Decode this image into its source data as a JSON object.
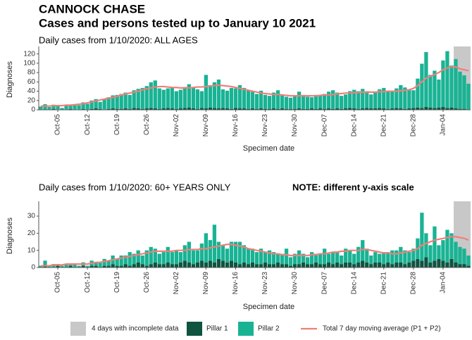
{
  "title": "CANNOCK CHASE",
  "subtitle": "Cases and persons tested up to January 10 2021",
  "incomplete_label": "4 days with incomplete data",
  "incomplete_color": "#c8c8c8",
  "chart_data": [
    {
      "type": "bar",
      "title": "Daily cases from 1/10/2020: ALL AGES",
      "xlabel": "Specimen date",
      "ylabel": "Diagnoses",
      "incomplete_days": 4,
      "categories": [
        null,
        null,
        null,
        null,
        "Oct-05",
        null,
        null,
        null,
        null,
        null,
        null,
        "Oct-12",
        null,
        null,
        null,
        null,
        null,
        null,
        "Oct-19",
        null,
        null,
        null,
        null,
        null,
        null,
        "Oct-26",
        null,
        null,
        null,
        null,
        null,
        null,
        "Nov-02",
        null,
        null,
        null,
        null,
        null,
        null,
        "Nov-09",
        null,
        null,
        null,
        null,
        null,
        null,
        "Nov-16",
        null,
        null,
        null,
        null,
        null,
        null,
        "Nov-23",
        null,
        null,
        null,
        null,
        null,
        null,
        "Nov-30",
        null,
        null,
        null,
        null,
        null,
        null,
        "Dec-07",
        null,
        null,
        null,
        null,
        null,
        null,
        "Dec-14",
        null,
        null,
        null,
        null,
        null,
        null,
        "Dec-21",
        null,
        null,
        null,
        null,
        null,
        null,
        "Dec-28",
        null,
        null,
        null,
        null,
        null,
        null,
        "Jan-04",
        null,
        null,
        null,
        null,
        null,
        null
      ],
      "ylim": [
        0,
        130
      ],
      "yticks": [
        0,
        20,
        40,
        60,
        80,
        100,
        120
      ],
      "series": [
        {
          "name": "Pillar 1",
          "color": "#0e5440",
          "values": [
            1,
            0,
            1,
            2,
            1,
            0,
            1,
            2,
            1,
            1,
            2,
            1,
            2,
            3,
            2,
            1,
            2,
            3,
            2,
            2,
            3,
            2,
            4,
            3,
            2,
            3,
            4,
            3,
            2,
            3,
            4,
            3,
            2,
            3,
            4,
            5,
            3,
            2,
            4,
            3,
            5,
            4,
            3,
            4,
            3,
            2,
            4,
            3,
            3,
            2,
            3,
            2,
            3,
            2,
            2,
            3,
            2,
            3,
            2,
            2,
            2,
            3,
            2,
            2,
            3,
            2,
            3,
            2,
            3,
            2,
            3,
            2,
            3,
            4,
            3,
            2,
            3,
            4,
            3,
            3,
            4,
            3,
            2,
            3,
            4,
            3,
            2,
            3,
            4,
            5,
            4,
            6,
            5,
            4,
            5,
            6,
            4,
            5,
            3,
            2,
            2,
            1
          ]
        },
        {
          "name": "Pillar 2",
          "color": "#19b394",
          "values": [
            6,
            12,
            5,
            9,
            7,
            4,
            10,
            8,
            11,
            9,
            14,
            12,
            18,
            20,
            15,
            22,
            25,
            28,
            30,
            32,
            34,
            30,
            38,
            42,
            45,
            48,
            55,
            60,
            44,
            40,
            42,
            46,
            38,
            40,
            45,
            50,
            44,
            42,
            36,
            72,
            48,
            55,
            62,
            40,
            38,
            45,
            42,
            50,
            44,
            40,
            36,
            32,
            38,
            30,
            28,
            34,
            40,
            30,
            26,
            24,
            28,
            36,
            30,
            26,
            24,
            30,
            28,
            32,
            36,
            40,
            34,
            28,
            30,
            36,
            40,
            38,
            42,
            36,
            30,
            34,
            40,
            44,
            38,
            36,
            42,
            50,
            46,
            40,
            38,
            62,
            95,
            118,
            70,
            80,
            60,
            100,
            122,
            90,
            106,
            80,
            72,
            55
          ]
        },
        {
          "name": "Total 7 day moving average (P1 + P2)",
          "type": "line",
          "color": "#f07f7a",
          "values": [
            8,
            8,
            8,
            9,
            9,
            9,
            10,
            10,
            11,
            12,
            13,
            15,
            17,
            19,
            21,
            23,
            25,
            27,
            29,
            32,
            34,
            36,
            38,
            40,
            43,
            45,
            47,
            49,
            50,
            50,
            49,
            48,
            48,
            47,
            47,
            47,
            48,
            49,
            49,
            50,
            51,
            52,
            53,
            52,
            51,
            50,
            48,
            46,
            44,
            42,
            40,
            38,
            36,
            35,
            34,
            33,
            33,
            32,
            31,
            30,
            30,
            30,
            30,
            30,
            30,
            30,
            31,
            32,
            32,
            33,
            34,
            35,
            36,
            36,
            37,
            37,
            38,
            38,
            38,
            38,
            39,
            39,
            40,
            40,
            40,
            41,
            42,
            43,
            46,
            52,
            60,
            68,
            72,
            76,
            80,
            86,
            90,
            92,
            92,
            88,
            86,
            84
          ]
        }
      ]
    },
    {
      "type": "bar",
      "title": "Daily cases from 1/10/2020: 60+ YEARS ONLY",
      "note": "NOTE: different y-axis scale",
      "xlabel": "Specimen date",
      "ylabel": "Diagnoses",
      "incomplete_days": 4,
      "categories": [
        null,
        null,
        null,
        null,
        "Oct-05",
        null,
        null,
        null,
        null,
        null,
        null,
        "Oct-12",
        null,
        null,
        null,
        null,
        null,
        null,
        "Oct-19",
        null,
        null,
        null,
        null,
        null,
        null,
        "Oct-26",
        null,
        null,
        null,
        null,
        null,
        null,
        "Nov-02",
        null,
        null,
        null,
        null,
        null,
        null,
        "Nov-09",
        null,
        null,
        null,
        null,
        null,
        null,
        "Nov-16",
        null,
        null,
        null,
        null,
        null,
        null,
        "Nov-23",
        null,
        null,
        null,
        null,
        null,
        null,
        "Nov-30",
        null,
        null,
        null,
        null,
        null,
        null,
        "Dec-07",
        null,
        null,
        null,
        null,
        null,
        null,
        "Dec-14",
        null,
        null,
        null,
        null,
        null,
        null,
        "Dec-21",
        null,
        null,
        null,
        null,
        null,
        null,
        "Dec-28",
        null,
        null,
        null,
        null,
        null,
        null,
        "Jan-04",
        null,
        null,
        null,
        null,
        null,
        null
      ],
      "ylim": [
        0,
        37
      ],
      "yticks": [
        0,
        10,
        20,
        30
      ],
      "series": [
        {
          "color": "#0e5440",
          "values": [
            0,
            1,
            0,
            0,
            1,
            0,
            0,
            1,
            0,
            0,
            1,
            0,
            1,
            1,
            0,
            1,
            1,
            2,
            1,
            1,
            2,
            1,
            2,
            3,
            2,
            1,
            2,
            3,
            2,
            2,
            3,
            2,
            2,
            3,
            4,
            3,
            2,
            3,
            4,
            3,
            4,
            3,
            5,
            4,
            3,
            4,
            3,
            2,
            3,
            2,
            3,
            2,
            2,
            3,
            2,
            2,
            3,
            2,
            2,
            1,
            2,
            2,
            3,
            2,
            2,
            3,
            2,
            2,
            3,
            2,
            3,
            2,
            3,
            3,
            2,
            3,
            4,
            3,
            2,
            3,
            3,
            2,
            3,
            2,
            3,
            3,
            2,
            3,
            4,
            5,
            4,
            6,
            3,
            4,
            5,
            4,
            3,
            5,
            3,
            2,
            2,
            1
          ]
        },
        {
          "color": "#19b394",
          "values": [
            1,
            3,
            1,
            2,
            1,
            1,
            2,
            1,
            2,
            1,
            2,
            1,
            3,
            2,
            3,
            4,
            3,
            5,
            4,
            6,
            5,
            8,
            6,
            7,
            5,
            9,
            10,
            8,
            6,
            7,
            9,
            7,
            8,
            6,
            9,
            12,
            8,
            7,
            10,
            17,
            12,
            22,
            10,
            9,
            8,
            11,
            12,
            13,
            10,
            9,
            8,
            7,
            9,
            6,
            8,
            7,
            5,
            6,
            9,
            5,
            6,
            8,
            5,
            4,
            7,
            5,
            6,
            9,
            5,
            7,
            6,
            5,
            8,
            7,
            6,
            9,
            12,
            8,
            5,
            6,
            5,
            7,
            6,
            8,
            7,
            9,
            8,
            6,
            7,
            12,
            28,
            14,
            10,
            20,
            8,
            12,
            19,
            15,
            12,
            10,
            9,
            6
          ]
        },
        {
          "type": "line",
          "color": "#f07f7a",
          "values": [
            1,
            1,
            1,
            1.5,
            1.5,
            1.5,
            2,
            2,
            2,
            2,
            2,
            2,
            2.5,
            3,
            3,
            3.5,
            4,
            4.5,
            5,
            5.5,
            6,
            6.5,
            7,
            7.5,
            8,
            8.5,
            9,
            9.5,
            9.5,
            9.5,
            9.5,
            9.5,
            10,
            10,
            10,
            10.5,
            10.5,
            10.5,
            11,
            11,
            11.5,
            12,
            12.5,
            13,
            13.5,
            13.5,
            13,
            12.5,
            12,
            11,
            10.5,
            10,
            9.5,
            9,
            8.5,
            8,
            8,
            7.5,
            7.5,
            7,
            7,
            7,
            7,
            7,
            7.5,
            7.5,
            8,
            8,
            8.5,
            9,
            9,
            9.5,
            9.5,
            10,
            10,
            10,
            10.5,
            10.5,
            10,
            9.5,
            9,
            8.5,
            8.5,
            8,
            8,
            8.5,
            9,
            9.5,
            10,
            11,
            13,
            14,
            15,
            16,
            16.5,
            17,
            17.5,
            18,
            18,
            17.5,
            17,
            16
          ]
        }
      ]
    }
  ]
}
